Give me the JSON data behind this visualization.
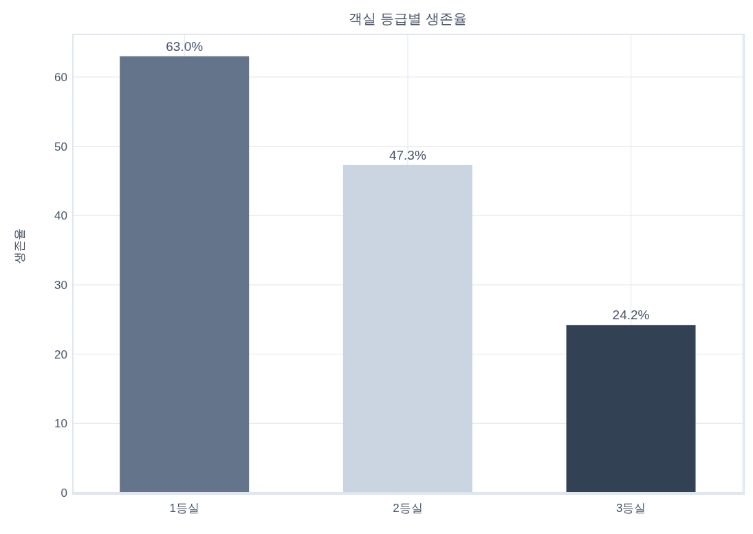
{
  "chart_data": {
    "type": "bar",
    "title": "객실 등급별 생존율",
    "ylabel": "생존율",
    "categories": [
      "1등실",
      "2등실",
      "3등실"
    ],
    "values": [
      63.0,
      47.3,
      24.2
    ],
    "colors": [
      "#64748b",
      "#cbd5e1",
      "#334155"
    ],
    "value_labels": [
      "63.0%",
      "47.3%",
      "24.2%"
    ],
    "ylim": [
      0,
      66.15
    ],
    "yticks": [
      0,
      10,
      20,
      30,
      40,
      50,
      60
    ],
    "grid": true
  }
}
